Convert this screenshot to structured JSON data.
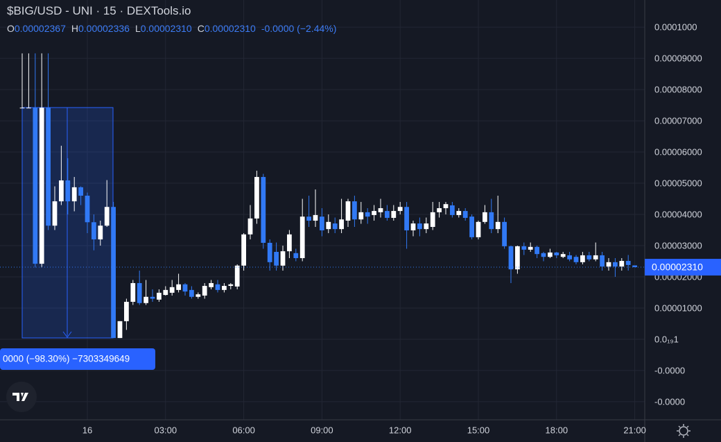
{
  "chart_data": {
    "type": "candlestick",
    "title": "$BIG/USD - UNI · 15 · DEXTools.io",
    "ohlc_keys": [
      "O",
      "H",
      "L",
      "C"
    ],
    "ohlc_values": [
      "0.00002367",
      "0.00002336",
      "0.00002310",
      "0.00002310"
    ],
    "change": "-0.0000 (−2.44%)",
    "annotation": "0000 (−98.30%) −7303349649",
    "last_price": {
      "value": 2.31e-05,
      "label": "0.00002310"
    },
    "up_color": "#ffffff",
    "down_color": "#3179f5",
    "grid": true,
    "x": [
      -2.5,
      -2.25,
      -2,
      -1.75,
      -1.5,
      -1.25,
      -1,
      -0.75,
      -0.5,
      -0.25,
      0,
      0.25,
      0.5,
      0.75,
      1,
      1.25,
      1.5,
      1.75,
      2,
      2.25,
      2.5,
      2.75,
      3,
      3.25,
      3.5,
      3.75,
      4,
      4.25,
      4.5,
      4.75,
      5,
      5.25,
      5.5,
      5.75,
      6,
      6.25,
      6.5,
      6.75,
      7,
      7.25,
      7.5,
      7.75,
      8,
      8.25,
      8.5,
      8.75,
      9,
      9.25,
      9.5,
      9.75,
      10,
      10.25,
      10.5,
      10.75,
      11,
      11.25,
      11.5,
      11.75,
      12,
      12.25,
      12.5,
      12.75,
      13,
      13.25,
      13.5,
      13.75,
      14,
      14.25,
      14.5,
      14.75,
      15,
      15.25,
      15.5,
      15.75,
      16,
      16.25,
      16.5,
      16.75,
      17,
      17.25,
      17.5,
      17.75,
      18,
      18.25,
      18.5,
      18.75,
      19,
      19.25,
      19.5,
      19.75,
      20,
      20.25,
      20.5,
      20.75,
      21
    ],
    "open": [
      7.42e-05,
      7.42e-05,
      7.42e-05,
      2.42e-05,
      7.42e-05,
      3.64e-05,
      4.42e-05,
      5.09e-05,
      4.42e-05,
      4.87e-05,
      4.6e-05,
      3.75e-05,
      3.2e-05,
      3.64e-05,
      4.24e-05,
      4e-07,
      5.8e-06,
      1.2e-05,
      1.8e-05,
      1.16e-05,
      1.36e-05,
      1.27e-05,
      1.42e-05,
      1.49e-05,
      1.58e-05,
      1.76e-05,
      1.58e-05,
      1.36e-05,
      1.4e-05,
      1.67e-05,
      1.76e-05,
      1.58e-05,
      1.71e-05,
      1.69e-05,
      2.36e-05,
      3.36e-05,
      3.87e-05,
      5.2e-05,
      3.09e-05,
      2.8e-05,
      2.36e-05,
      2.82e-05,
      2.76e-05,
      2.6e-05,
      3.93e-05,
      3.8e-05,
      3.93e-05,
      3.53e-05,
      3.71e-05,
      3.53e-05,
      3.8e-05,
      4.42e-05,
      3.84e-05,
      4.07e-05,
      3.98e-05,
      4.07e-05,
      4.11e-05,
      3.89e-05,
      4.11e-05,
      4.24e-05,
      3.49e-05,
      3.71e-05,
      3.53e-05,
      3.6e-05,
      4.07e-05,
      4.2e-05,
      4.29e-05,
      3.98e-05,
      4.11e-05,
      3.93e-05,
      3.27e-05,
      3.76e-05,
      4.07e-05,
      3.53e-05,
      3.76e-05,
      2.98e-05,
      2.24e-05,
      2.98e-05,
      2.87e-05,
      2.96e-05,
      2.76e-05,
      2.64e-05,
      2.78e-05,
      2.64e-05,
      2.69e-05,
      2.64e-05,
      2.47e-05,
      2.69e-05,
      2.56e-05,
      2.69e-05,
      2.33e-05,
      2.47e-05,
      2.33e-05,
      2.51e-05,
      2.367e-05
    ],
    "high": [
      9.16e-05,
      9.16e-05,
      9.16e-05,
      9.16e-05,
      9.16e-05,
      4.9e-05,
      6.2e-05,
      5.8e-05,
      5.2e-05,
      4.9e-05,
      4.7e-05,
      4e-05,
      3.8e-05,
      5.1e-05,
      4.4e-05,
      5.8e-06,
      1.3e-05,
      1.9e-05,
      2.2e-05,
      1.9e-05,
      1.6e-05,
      1.6e-05,
      1.7e-05,
      1.9e-05,
      2.1e-05,
      1.8e-05,
      1.7e-05,
      1.5e-05,
      1.8e-05,
      1.9e-05,
      1.9e-05,
      1.8e-05,
      1.8e-05,
      2.4e-05,
      3.4e-05,
      4.3e-05,
      5.4e-05,
      5.3e-05,
      3.2e-05,
      3.1e-05,
      3e-05,
      3.5e-05,
      2.9e-05,
      4.5e-05,
      4.6e-05,
      4.8e-05,
      4.2e-05,
      4e-05,
      3.9e-05,
      4.5e-05,
      4.5e-05,
      4.6e-05,
      4.4e-05,
      4.2e-05,
      4.3e-05,
      4.5e-05,
      4.3e-05,
      4.3e-05,
      4.4e-05,
      4.4e-05,
      3.8e-05,
      3.9e-05,
      3.9e-05,
      4.4e-05,
      4.4e-05,
      4.4e-05,
      4.4e-05,
      4.2e-05,
      4.2e-05,
      4e-05,
      3.8e-05,
      4.3e-05,
      4.5e-05,
      4.6e-05,
      3.9e-05,
      3e-05,
      3e-05,
      3.1e-05,
      3.1e-05,
      3e-05,
      2.8e-05,
      2.9e-05,
      2.8e-05,
      2.8e-05,
      2.8e-05,
      2.7e-05,
      2.8e-05,
      2.8e-05,
      3.1e-05,
      2.8e-05,
      2.6e-05,
      2.6e-05,
      2.6e-05,
      2.7e-05,
      2.336e-05
    ],
    "low": [
      7.42e-05,
      7.42e-05,
      2.3e-05,
      2.3e-05,
      3.5e-05,
      3.5e-05,
      4.3e-05,
      4e-05,
      4.1e-05,
      4.3e-05,
      3.4e-05,
      2.85e-05,
      3e-05,
      3.6e-05,
      4e-07,
      4e-07,
      3e-06,
      1.1e-05,
      1.1e-05,
      1.1e-05,
      1.2e-05,
      1.2e-05,
      1.4e-05,
      1.4e-05,
      1.5e-05,
      1.4e-05,
      1.3e-05,
      1.3e-05,
      1.3e-05,
      1.6e-05,
      1.5e-05,
      1.5e-05,
      1.6e-05,
      1.6e-05,
      2.2e-05,
      3.2e-05,
      3.7e-05,
      2.9e-05,
      2.2e-05,
      2.2e-05,
      2.2e-05,
      2.6e-05,
      2.5e-05,
      2.5e-05,
      3.6e-05,
      3.6e-05,
      3.3e-05,
      3.4e-05,
      3.4e-05,
      3.4e-05,
      3.6e-05,
      3.6e-05,
      3.7e-05,
      3.7e-05,
      3.8e-05,
      3.9e-05,
      3.8e-05,
      3.8e-05,
      4e-05,
      2.9e-05,
      3.3e-05,
      3.3e-05,
      3.4e-05,
      3.5e-05,
      3.9e-05,
      4e-05,
      3.9e-05,
      3.9e-05,
      3.8e-05,
      3.2e-05,
      3.2e-05,
      3.7e-05,
      3.4e-05,
      3.4e-05,
      2.9e-05,
      1.8e-05,
      2.1e-05,
      2.7e-05,
      2.8e-05,
      2.6e-05,
      2.5e-05,
      2.6e-05,
      2.6e-05,
      2.6e-05,
      2.5e-05,
      2.4e-05,
      2.4e-05,
      2.5e-05,
      2.5e-05,
      2.2e-05,
      2.2e-05,
      2e-05,
      2.2e-05,
      2.2e-05,
      2.31e-05
    ],
    "close": [
      7.42e-05,
      7.42e-05,
      2.42e-05,
      7.42e-05,
      3.64e-05,
      4.42e-05,
      5.09e-05,
      4.42e-05,
      4.87e-05,
      4.6e-05,
      3.75e-05,
      3.2e-05,
      3.64e-05,
      4.24e-05,
      4e-07,
      5.8e-06,
      1.2e-05,
      1.8e-05,
      1.16e-05,
      1.36e-05,
      1.3e-05,
      1.49e-05,
      1.58e-05,
      1.67e-05,
      1.76e-05,
      1.53e-05,
      1.36e-05,
      1.44e-05,
      1.71e-05,
      1.8e-05,
      1.58e-05,
      1.71e-05,
      1.76e-05,
      2.36e-05,
      3.36e-05,
      3.87e-05,
      5.2e-05,
      3.09e-05,
      2.47e-05,
      2.36e-05,
      2.82e-05,
      3.36e-05,
      2.6e-05,
      3.93e-05,
      3.8e-05,
      3.98e-05,
      3.49e-05,
      3.76e-05,
      3.53e-05,
      3.84e-05,
      4.42e-05,
      3.84e-05,
      4.07e-05,
      3.93e-05,
      4.11e-05,
      4.2e-05,
      3.89e-05,
      4.11e-05,
      4.24e-05,
      3.49e-05,
      3.71e-05,
      3.53e-05,
      3.71e-05,
      4.07e-05,
      4.2e-05,
      4.33e-05,
      3.98e-05,
      4.11e-05,
      3.89e-05,
      3.27e-05,
      3.76e-05,
      4.07e-05,
      3.53e-05,
      3.76e-05,
      2.98e-05,
      2.24e-05,
      2.98e-05,
      2.87e-05,
      2.96e-05,
      2.73e-05,
      2.64e-05,
      2.78e-05,
      2.69e-05,
      2.73e-05,
      2.56e-05,
      2.47e-05,
      2.69e-05,
      2.56e-05,
      2.69e-05,
      2.33e-05,
      2.47e-05,
      2.33e-05,
      2.51e-05,
      2.38e-05,
      2.31e-05
    ],
    "xlim": [
      -3.351,
      21.383
    ],
    "xticks": [
      {
        "value": 0,
        "label": "16"
      },
      {
        "value": 3,
        "label": "03:00"
      },
      {
        "value": 6,
        "label": "06:00"
      },
      {
        "value": 9,
        "label": "09:00"
      },
      {
        "value": 12,
        "label": "12:00"
      },
      {
        "value": 15,
        "label": "15:00"
      },
      {
        "value": 18,
        "label": "18:00"
      },
      {
        "value": 21,
        "label": "21:00"
      }
    ],
    "ylim": [
      -2.58e-05,
      0.0001087
    ],
    "yticks": [
      {
        "value": 0.0001,
        "label": "0.0001000"
      },
      {
        "value": 9e-05,
        "label": "0.00009000"
      },
      {
        "value": 8e-05,
        "label": "0.00008000"
      },
      {
        "value": 7e-05,
        "label": "0.00007000"
      },
      {
        "value": 6e-05,
        "label": "0.00006000"
      },
      {
        "value": 5e-05,
        "label": "0.00005000"
      },
      {
        "value": 4e-05,
        "label": "0.00004000"
      },
      {
        "value": 3e-05,
        "label": "0.00003000"
      },
      {
        "value": 2e-05,
        "label": "0.00002000"
      },
      {
        "value": 1e-05,
        "label": "0.00001000"
      },
      {
        "value": 0,
        "label": "0.0₁₉1"
      },
      {
        "value": -1e-05,
        "label": "-0.0000"
      },
      {
        "value": -2e-05,
        "label": "-0.0000"
      }
    ]
  }
}
